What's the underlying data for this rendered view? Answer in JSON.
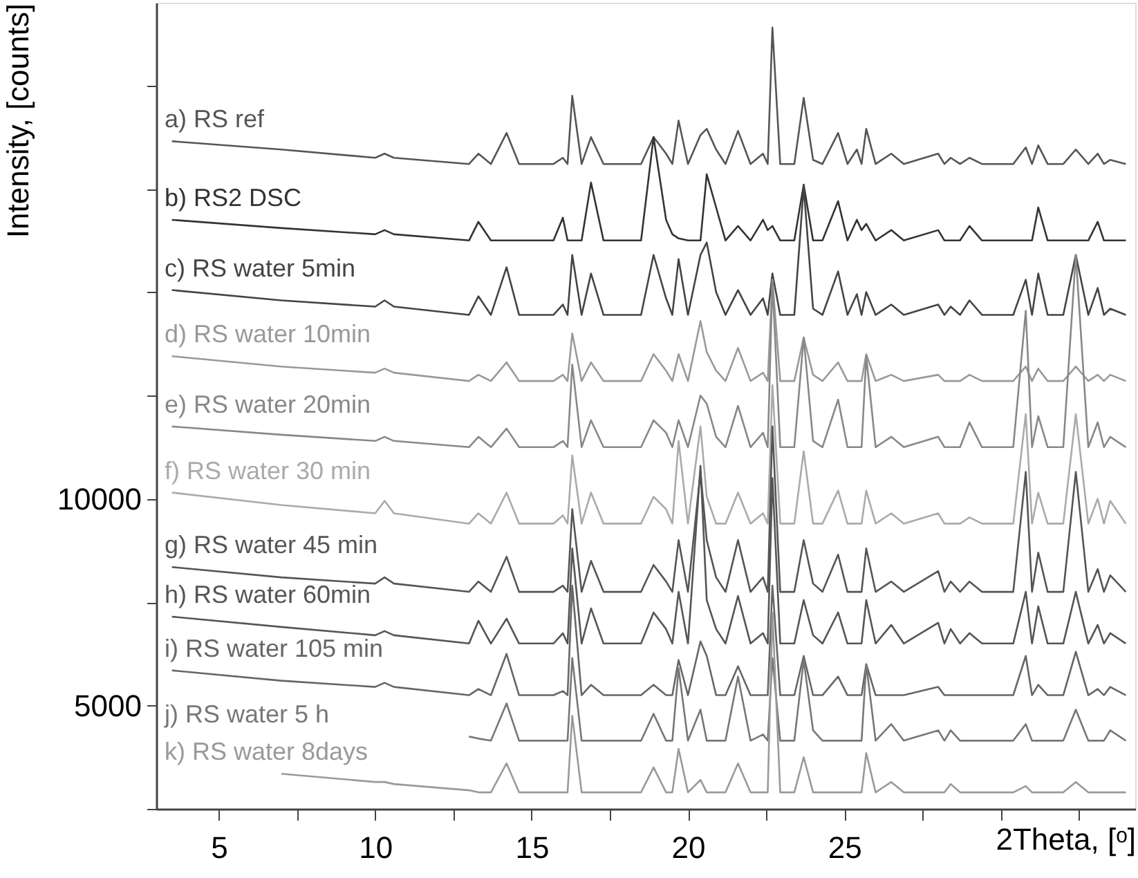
{
  "chart_data": {
    "type": "line",
    "xlabel": "2Theta, [ᵒ]",
    "ylabel": "Intensity, [counts]",
    "xlim": [
      3,
      34.3
    ],
    "ylim": [
      2500,
      22000
    ],
    "xticks": [
      5,
      {
        "value": 7.5,
        "label": null
      },
      10,
      {
        "value": 12.5,
        "label": null
      },
      15,
      {
        "value": 17.5,
        "label": null
      },
      20,
      {
        "value": 22.5,
        "label": null
      },
      25,
      {
        "value": 27.5,
        "label": null
      },
      {
        "value": 30,
        "label": null
      },
      {
        "value": 32.5,
        "label": null
      }
    ],
    "yticks": [
      {
        "value": 2500,
        "label": null
      },
      5000,
      {
        "value": 7500,
        "label": null
      },
      10000,
      {
        "value": 12500,
        "label": null
      },
      {
        "value": 15000,
        "label": null
      },
      {
        "value": 17500,
        "label": null
      },
      {
        "value": 20000,
        "label": null
      }
    ],
    "grid": false,
    "marker": "none",
    "line_style": "solid",
    "x": [
      3.5,
      7,
      10,
      10.3,
      10.6,
      13,
      13.3,
      13.7,
      14.2,
      14.6,
      15.7,
      16.0,
      16.15,
      16.3,
      16.6,
      16.9,
      17.3,
      18.5,
      18.9,
      19.3,
      19.5,
      19.7,
      20.0,
      20.4,
      20.6,
      20.9,
      21.2,
      21.6,
      22.0,
      22.4,
      22.55,
      22.7,
      22.95,
      23.4,
      23.7,
      24.0,
      24.3,
      24.8,
      25.1,
      25.4,
      25.55,
      25.7,
      26.0,
      26.5,
      26.9,
      28.0,
      28.2,
      28.4,
      28.7,
      29.0,
      29.4,
      30.4,
      30.8,
      31.0,
      31.2,
      31.5,
      32.0,
      32.4,
      32.8,
      33.1,
      33.3,
      33.5,
      34.0
    ],
    "series": [
      {
        "name": "a) RS ref",
        "color": "#555555",
        "values": [
          18650,
          18450,
          18250,
          18350,
          18250,
          18100,
          18350,
          18100,
          18850,
          18100,
          18100,
          18250,
          18100,
          19750,
          18100,
          18750,
          18100,
          18100,
          18750,
          18350,
          18100,
          19150,
          18100,
          18800,
          18950,
          18450,
          18100,
          18900,
          18100,
          18350,
          18100,
          21400,
          18100,
          18100,
          19700,
          18200,
          18100,
          18850,
          18100,
          18450,
          18100,
          18950,
          18100,
          18350,
          18100,
          18350,
          18100,
          18250,
          18100,
          18250,
          18100,
          18100,
          18500,
          18100,
          18550,
          18100,
          18100,
          18450,
          18100,
          18350,
          18100,
          18200,
          18100
        ]
      },
      {
        "name": "b) RS2 DSC",
        "color": "#333333",
        "values": [
          16750,
          16550,
          16400,
          16500,
          16400,
          16250,
          16700,
          16250,
          16250,
          16250,
          16250,
          16800,
          16250,
          16250,
          16250,
          17650,
          16250,
          16250,
          18750,
          16750,
          16400,
          16300,
          16250,
          16250,
          17850,
          17050,
          16250,
          16600,
          16250,
          16750,
          16500,
          16600,
          16250,
          16250,
          17600,
          16250,
          16250,
          17200,
          16250,
          16750,
          16500,
          16650,
          16250,
          16500,
          16250,
          16500,
          16250,
          16250,
          16250,
          16600,
          16250,
          16250,
          16250,
          16250,
          17050,
          16250,
          16250,
          16250,
          16250,
          16700,
          16250,
          16250,
          16250
        ]
      },
      {
        "name": "c) RS water 5min",
        "color": "#444444",
        "values": [
          15050,
          14800,
          14650,
          14800,
          14650,
          14450,
          14900,
          14450,
          15600,
          14450,
          14450,
          14700,
          14450,
          15900,
          14450,
          15450,
          14450,
          14450,
          15900,
          14850,
          14450,
          15800,
          14450,
          15900,
          16200,
          15000,
          14450,
          15050,
          14450,
          14850,
          14450,
          15450,
          14450,
          14450,
          17550,
          14600,
          14450,
          15500,
          14450,
          14950,
          14450,
          15000,
          14450,
          14700,
          14450,
          14700,
          14450,
          14650,
          14450,
          14800,
          14450,
          14450,
          15300,
          14450,
          15450,
          14450,
          14450,
          15900,
          14450,
          15100,
          14450,
          14600,
          14450
        ]
      },
      {
        "name": "d) RS water 10min",
        "color": "#999999",
        "values": [
          13450,
          13200,
          13050,
          13150,
          13050,
          12850,
          13000,
          12850,
          13300,
          12850,
          12850,
          13000,
          12850,
          14000,
          12850,
          13300,
          12850,
          12850,
          13500,
          13100,
          12850,
          13500,
          12850,
          14300,
          13550,
          13100,
          12850,
          13650,
          12850,
          13050,
          12850,
          15300,
          12850,
          12850,
          13900,
          13000,
          12850,
          13300,
          12850,
          12850,
          12850,
          13500,
          12850,
          13000,
          12850,
          13000,
          12850,
          12850,
          12850,
          13000,
          12850,
          12850,
          13200,
          12850,
          13150,
          12850,
          12850,
          13200,
          12850,
          13000,
          12850,
          13000,
          12850
        ]
      },
      {
        "name": "e) RS water 20min",
        "color": "#888888",
        "values": [
          11750,
          11550,
          11400,
          11500,
          11400,
          11250,
          11500,
          11250,
          11700,
          11250,
          11250,
          11400,
          11250,
          13250,
          11250,
          11900,
          11250,
          11250,
          11900,
          11600,
          11250,
          11900,
          11250,
          12500,
          12300,
          11500,
          11250,
          12250,
          11250,
          11600,
          11250,
          15250,
          11250,
          11250,
          13900,
          11400,
          11250,
          12400,
          11250,
          11250,
          11250,
          13450,
          11250,
          11500,
          11250,
          11500,
          11250,
          11250,
          11250,
          11850,
          11250,
          11250,
          14550,
          11250,
          12000,
          11250,
          11250,
          15900,
          11250,
          11850,
          11250,
          11500,
          11250
        ]
      },
      {
        "name": "f) RS water 30 min",
        "color": "#aaaaaa",
        "values": [
          10150,
          9850,
          9650,
          9950,
          9650,
          9400,
          9650,
          9400,
          10150,
          9400,
          9400,
          9600,
          9400,
          11050,
          9400,
          10150,
          9400,
          9400,
          10050,
          9750,
          9400,
          11400,
          9400,
          11750,
          10050,
          9400,
          9400,
          10150,
          9400,
          9650,
          9400,
          12750,
          9400,
          9400,
          11150,
          9400,
          9400,
          10200,
          9400,
          9400,
          9400,
          10200,
          9400,
          9650,
          9400,
          9650,
          9400,
          9400,
          9400,
          9550,
          9400,
          9400,
          12050,
          9400,
          10150,
          9400,
          9400,
          12050,
          9400,
          10000,
          9400,
          9950,
          9400
        ]
      },
      {
        "name": "g) RS water 45 min",
        "color": "#555555",
        "values": [
          8350,
          8100,
          7950,
          8100,
          7950,
          7750,
          8000,
          7750,
          8600,
          7750,
          7750,
          7900,
          7750,
          9750,
          7750,
          8500,
          7750,
          7750,
          8400,
          8000,
          7750,
          9000,
          7750,
          10650,
          9000,
          8100,
          7750,
          9000,
          7750,
          8100,
          7750,
          11750,
          7750,
          7750,
          9000,
          7950,
          7750,
          8650,
          7750,
          7750,
          7750,
          8800,
          7750,
          8000,
          7750,
          8250,
          7750,
          8000,
          7750,
          8000,
          7750,
          7750,
          10650,
          7750,
          8700,
          7750,
          7750,
          10650,
          7750,
          8300,
          7750,
          8150,
          7750
        ]
      },
      {
        "name": "h) RS water 60min",
        "color": "#555555",
        "values": [
          7150,
          6900,
          6700,
          6800,
          6700,
          6500,
          7050,
          6500,
          7100,
          6500,
          6500,
          6750,
          6500,
          8800,
          6500,
          7350,
          6500,
          6500,
          7250,
          6850,
          6500,
          7750,
          6500,
          10800,
          7550,
          6850,
          6500,
          7650,
          6500,
          6750,
          6500,
          10500,
          6500,
          6500,
          7550,
          6700,
          6500,
          7250,
          6500,
          6500,
          6500,
          7550,
          6500,
          6950,
          6500,
          7000,
          6500,
          6850,
          6500,
          6750,
          6500,
          6500,
          7750,
          6500,
          7400,
          6500,
          6500,
          7750,
          6500,
          6950,
          6500,
          6750,
          6500
        ]
      },
      {
        "name": "i) RS water 105 min",
        "color": "#666666",
        "values": [
          5850,
          5600,
          5450,
          5550,
          5450,
          5250,
          5400,
          5250,
          6250,
          5250,
          5250,
          5350,
          5250,
          7900,
          5250,
          5500,
          5250,
          5250,
          5500,
          5250,
          5250,
          6100,
          5250,
          6550,
          6200,
          5250,
          5250,
          5950,
          5250,
          5250,
          5250,
          7900,
          5250,
          5250,
          6200,
          5250,
          5250,
          5700,
          5250,
          5250,
          5250,
          6000,
          5250,
          5250,
          5250,
          5450,
          5250,
          5250,
          5250,
          5250,
          5250,
          5250,
          6200,
          5250,
          5500,
          5250,
          5250,
          6300,
          5250,
          5400,
          5250,
          5450,
          5250
        ]
      },
      {
        "name": "j) RS water 5 h",
        "color": "#777777",
        "values": [
          null,
          null,
          null,
          null,
          null,
          4250,
          4200,
          4150,
          5050,
          4150,
          4150,
          4150,
          4150,
          6150,
          4150,
          4150,
          4150,
          4150,
          4800,
          4150,
          4150,
          5900,
          4150,
          4900,
          4150,
          4150,
          4150,
          5700,
          4150,
          4300,
          4150,
          6150,
          4150,
          4150,
          6100,
          4400,
          4150,
          4150,
          4150,
          4150,
          4150,
          6000,
          4150,
          4550,
          4150,
          4400,
          4150,
          4400,
          4150,
          4150,
          4150,
          4150,
          4550,
          4150,
          4150,
          4150,
          4150,
          4900,
          4150,
          4150,
          4150,
          4400,
          4150
        ]
      },
      {
        "name": "k) RS water 8days",
        "color": "#999999",
        "values": [
          null,
          3350,
          3150,
          3150,
          3100,
          2950,
          2900,
          2900,
          3600,
          2900,
          2900,
          2900,
          2900,
          4750,
          2900,
          2900,
          2900,
          2900,
          3500,
          2900,
          2900,
          3950,
          2900,
          3200,
          2900,
          2900,
          2900,
          3600,
          2900,
          2900,
          2900,
          7250,
          2900,
          2900,
          3750,
          2900,
          2900,
          2900,
          2900,
          2900,
          2900,
          3850,
          2900,
          3150,
          2900,
          2900,
          2900,
          3100,
          2900,
          2900,
          2900,
          2900,
          3050,
          2900,
          2900,
          2900,
          2900,
          3150,
          2900,
          2900,
          2900,
          2900,
          2900
        ]
      }
    ]
  }
}
